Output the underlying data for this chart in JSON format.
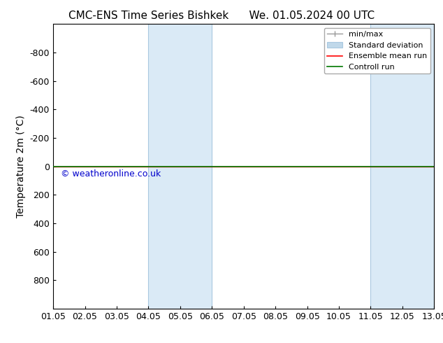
{
  "title_left": "CMC-ENS Time Series Bishkek",
  "title_right": "We. 01.05.2024 00 UTC",
  "ylabel": "Temperature 2m (°C)",
  "xlabel_ticks": [
    "01.05",
    "02.05",
    "03.05",
    "04.05",
    "05.05",
    "06.05",
    "07.05",
    "08.05",
    "09.05",
    "10.05",
    "11.05",
    "12.05",
    "13.05"
  ],
  "x_values": [
    0,
    1,
    2,
    3,
    4,
    5,
    6,
    7,
    8,
    9,
    10,
    11,
    12
  ],
  "xlim": [
    0,
    12
  ],
  "ylim_top": -1000,
  "ylim_bottom": 1000,
  "yticks": [
    -800,
    -600,
    -400,
    -200,
    0,
    200,
    400,
    600,
    800
  ],
  "ytick_labels": [
    "-800",
    "-600",
    "-400",
    "-200",
    "0",
    "200",
    "400",
    "600",
    "800"
  ],
  "control_run_y": 0,
  "ensemble_mean_y": 0,
  "shaded_bands": [
    {
      "x_start": 3,
      "x_end": 5
    },
    {
      "x_start": 10,
      "x_end": 12
    }
  ],
  "shade_color": "#daeaf6",
  "shade_edge_color": "#a8c8e0",
  "control_line_color": "#007700",
  "ensemble_mean_color": "#ff0000",
  "minmax_color": "#999999",
  "stddev_color": "#c0d8ea",
  "watermark_text": "© weatheronline.co.uk",
  "watermark_color": "#0000cc",
  "background_color": "#ffffff",
  "title_fontsize": 11,
  "axis_fontsize": 10,
  "tick_fontsize": 9,
  "legend_fontsize": 8
}
